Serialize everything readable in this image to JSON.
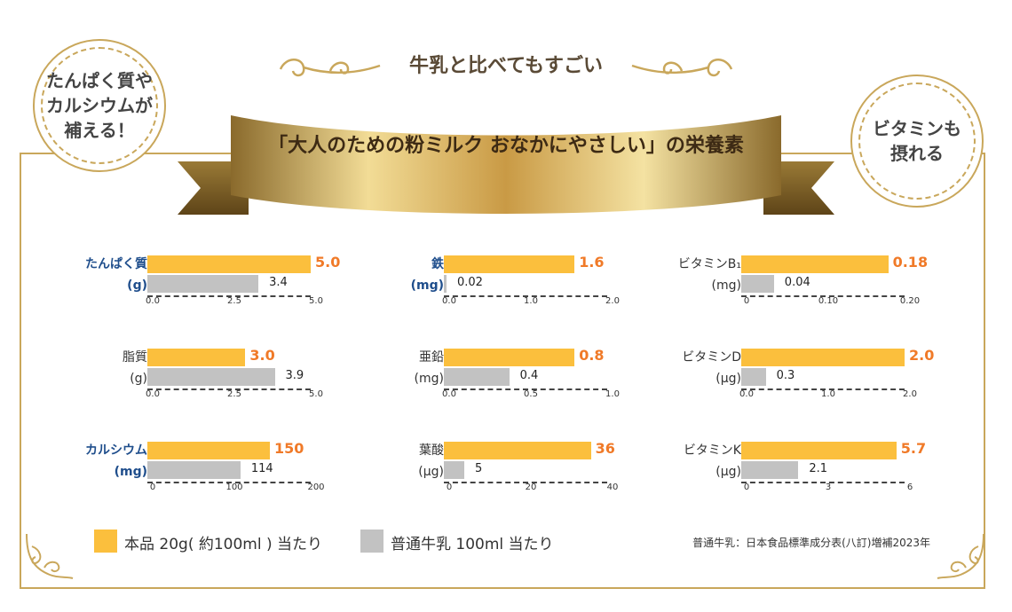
{
  "headline": "牛乳と比べてもすごい",
  "ribbon_title": "「大人のための粉ミルク おなかにやさしい」の栄養素",
  "medal_left": "たんぱく質や\nカルシウムが\n補える！",
  "medal_right": "ビタミンも\n摂れる",
  "legend": {
    "product": "本品 20g( 約100ml ) 当たり",
    "milk": "普通牛乳 100ml 当たり"
  },
  "source_note": "普通牛乳：日本食品標準成分表(八訂)増補2023年",
  "colors": {
    "product": "#fbbf3d",
    "milk": "#c2c2c2",
    "value": "#f07a28",
    "gold": "#c9a75b"
  },
  "chart_data": [
    {
      "type": "bar",
      "name": "たんぱく質",
      "unit": "(g)",
      "highlight": true,
      "categories": [
        "本品",
        "普通牛乳"
      ],
      "values": [
        5.0,
        3.4
      ],
      "labels": [
        "5.0",
        "3.4"
      ],
      "xlim": [
        0,
        5.0
      ],
      "ticks": [
        "0.0",
        "2.5",
        "5.0"
      ]
    },
    {
      "type": "bar",
      "name": "鉄",
      "unit": "(mg)",
      "highlight": true,
      "categories": [
        "本品",
        "普通牛乳"
      ],
      "values": [
        1.6,
        0.02
      ],
      "labels": [
        "1.6",
        "0.02"
      ],
      "xlim": [
        0,
        2.0
      ],
      "ticks": [
        "0.0",
        "1.0",
        "2.0"
      ]
    },
    {
      "type": "bar",
      "name": "ビタミンB₁",
      "unit": "(mg)",
      "highlight": false,
      "categories": [
        "本品",
        "普通牛乳"
      ],
      "values": [
        0.18,
        0.04
      ],
      "labels": [
        "0.18",
        "0.04"
      ],
      "xlim": [
        0,
        0.2
      ],
      "ticks": [
        "0",
        "0.10",
        "0.20"
      ]
    },
    {
      "type": "bar",
      "name": "脂質",
      "unit": "(g)",
      "highlight": false,
      "categories": [
        "本品",
        "普通牛乳"
      ],
      "values": [
        3.0,
        3.9
      ],
      "labels": [
        "3.0",
        "3.9"
      ],
      "xlim": [
        0,
        5.0
      ],
      "ticks": [
        "0.0",
        "2.5",
        "5.0"
      ]
    },
    {
      "type": "bar",
      "name": "亜鉛",
      "unit": "(mg)",
      "highlight": false,
      "categories": [
        "本品",
        "普通牛乳"
      ],
      "values": [
        0.8,
        0.4
      ],
      "labels": [
        "0.8",
        "0.4"
      ],
      "xlim": [
        0,
        1.0
      ],
      "ticks": [
        "0.0",
        "0.5",
        "1.0"
      ]
    },
    {
      "type": "bar",
      "name": "ビタミンD",
      "unit": "(μg)",
      "highlight": false,
      "categories": [
        "本品",
        "普通牛乳"
      ],
      "values": [
        2.0,
        0.3
      ],
      "labels": [
        "2.0",
        "0.3"
      ],
      "xlim": [
        0,
        2.0
      ],
      "ticks": [
        "0.0",
        "1.0",
        "2.0"
      ]
    },
    {
      "type": "bar",
      "name": "カルシウム",
      "unit": "(mg)",
      "highlight": true,
      "categories": [
        "本品",
        "普通牛乳"
      ],
      "values": [
        150,
        114
      ],
      "labels": [
        "150",
        "114"
      ],
      "xlim": [
        0,
        200
      ],
      "ticks": [
        "0",
        "100",
        "200"
      ]
    },
    {
      "type": "bar",
      "name": "葉酸",
      "unit": "(μg)",
      "highlight": false,
      "categories": [
        "本品",
        "普通牛乳"
      ],
      "values": [
        36,
        5
      ],
      "labels": [
        "36",
        "5"
      ],
      "xlim": [
        0,
        40
      ],
      "ticks": [
        "0",
        "20",
        "40"
      ]
    },
    {
      "type": "bar",
      "name": "ビタミンK",
      "unit": "(μg)",
      "highlight": false,
      "categories": [
        "本品",
        "普通牛乳"
      ],
      "values": [
        5.7,
        2.1
      ],
      "labels": [
        "5.7",
        "2.1"
      ],
      "xlim": [
        0,
        6
      ],
      "ticks": [
        "0",
        "3",
        "6"
      ]
    }
  ]
}
